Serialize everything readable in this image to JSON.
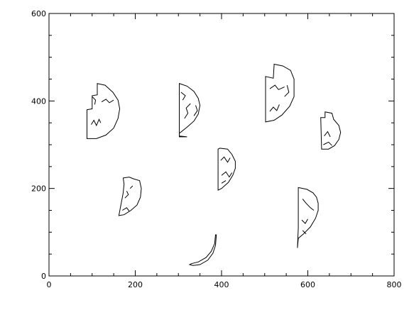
{
  "chart_data": {
    "type": "contour",
    "title": "",
    "xlabel": "",
    "ylabel": "",
    "xlim": [
      0,
      800
    ],
    "ylim": [
      0,
      600
    ],
    "xticks_major": [
      0,
      200,
      400,
      600,
      800
    ],
    "yticks_major": [
      0,
      200,
      400,
      600
    ],
    "xticks_minor_step": 50,
    "yticks_minor_step": 50,
    "grid": false,
    "legend": "none",
    "line_color": "#000000",
    "regions": [
      {
        "name": "region-1",
        "outline": [
          [
            112,
            440
          ],
          [
            130,
            436
          ],
          [
            148,
            420
          ],
          [
            160,
            402
          ],
          [
            164,
            382
          ],
          [
            160,
            360
          ],
          [
            150,
            338
          ],
          [
            132,
            322
          ],
          [
            110,
            314
          ],
          [
            88,
            314
          ],
          [
            88,
            380
          ],
          [
            100,
            382
          ],
          [
            100,
            412
          ],
          [
            112,
            414
          ]
        ],
        "details": [
          [
            [
              98,
              346
            ],
            [
              104,
              356
            ],
            [
              110,
              344
            ],
            [
              116,
              358
            ],
            [
              120,
              350
            ]
          ],
          [
            [
              122,
              398
            ],
            [
              132,
              404
            ],
            [
              140,
              396
            ],
            [
              150,
              402
            ]
          ],
          [
            [
              100,
              410
            ],
            [
              108,
              402
            ],
            [
              106,
              392
            ]
          ]
        ]
      },
      {
        "name": "region-2",
        "outline": [
          [
            302,
            440
          ],
          [
            320,
            434
          ],
          [
            336,
            422
          ],
          [
            346,
            406
          ],
          [
            350,
            390
          ],
          [
            346,
            370
          ],
          [
            336,
            354
          ],
          [
            320,
            340
          ],
          [
            302,
            326
          ],
          [
            302,
            318
          ],
          [
            320,
            318
          ],
          [
            302,
            320
          ]
        ],
        "details": [
          [
            [
              314,
              360
            ],
            [
              322,
              372
            ],
            [
              318,
              384
            ],
            [
              328,
              394
            ]
          ],
          [
            [
              336,
              366
            ],
            [
              344,
              378
            ],
            [
              340,
              390
            ]
          ],
          [
            [
              306,
              420
            ],
            [
              316,
              412
            ],
            [
              310,
              402
            ]
          ]
        ]
      },
      {
        "name": "region-3",
        "outline": [
          [
            502,
            456
          ],
          [
            520,
            452
          ],
          [
            522,
            484
          ],
          [
            542,
            480
          ],
          [
            560,
            470
          ],
          [
            568,
            450
          ],
          [
            568,
            410
          ],
          [
            558,
            388
          ],
          [
            540,
            368
          ],
          [
            522,
            356
          ],
          [
            502,
            352
          ]
        ],
        "details": [
          [
            [
              512,
              428
            ],
            [
              524,
              436
            ],
            [
              532,
              426
            ],
            [
              546,
              432
            ]
          ],
          [
            [
              512,
              376
            ],
            [
              520,
              386
            ],
            [
              528,
              378
            ],
            [
              534,
              392
            ]
          ],
          [
            [
              546,
              410
            ],
            [
              556,
              420
            ],
            [
              552,
              436
            ]
          ]
        ]
      },
      {
        "name": "region-4",
        "outline": [
          [
            640,
            375
          ],
          [
            656,
            372
          ],
          [
            660,
            358
          ],
          [
            672,
            344
          ],
          [
            676,
            328
          ],
          [
            672,
            312
          ],
          [
            662,
            298
          ],
          [
            648,
            290
          ],
          [
            632,
            290
          ],
          [
            630,
            362
          ],
          [
            640,
            362
          ]
        ],
        "details": [
          [
            [
              638,
              320
            ],
            [
              646,
              330
            ],
            [
              652,
              318
            ]
          ],
          [
            [
              636,
              300
            ],
            [
              648,
              306
            ],
            [
              656,
              298
            ]
          ]
        ]
      },
      {
        "name": "region-5",
        "outline": [
          [
            396,
            292
          ],
          [
            414,
            290
          ],
          [
            424,
            278
          ],
          [
            432,
            262
          ],
          [
            432,
            246
          ],
          [
            426,
            230
          ],
          [
            416,
            214
          ],
          [
            400,
            200
          ],
          [
            392,
            196
          ],
          [
            392,
            290
          ]
        ],
        "details": [
          [
            [
              398,
              264
            ],
            [
              406,
              272
            ],
            [
              414,
              260
            ],
            [
              420,
              270
            ]
          ],
          [
            [
              400,
              230
            ],
            [
              410,
              238
            ],
            [
              418,
              226
            ],
            [
              424,
              236
            ]
          ],
          [
            [
              400,
              212
            ],
            [
              410,
              218
            ]
          ]
        ]
      },
      {
        "name": "region-6",
        "outline": [
          [
            172,
            224
          ],
          [
            186,
            226
          ],
          [
            196,
            222
          ],
          [
            210,
            218
          ],
          [
            214,
            200
          ],
          [
            212,
            180
          ],
          [
            204,
            162
          ],
          [
            190,
            150
          ],
          [
            174,
            140
          ],
          [
            162,
            138
          ],
          [
            172,
            190
          ],
          [
            174,
            210
          ]
        ],
        "details": [
          [
            [
              176,
              178
            ],
            [
              184,
              186
            ],
            [
              180,
              194
            ]
          ],
          [
            [
              188,
              200
            ],
            [
              194,
              206
            ]
          ],
          [
            [
              170,
              150
            ],
            [
              180,
              156
            ],
            [
              186,
              148
            ]
          ]
        ]
      },
      {
        "name": "region-7",
        "outline": [
          [
            578,
            202
          ],
          [
            598,
            198
          ],
          [
            612,
            190
          ],
          [
            620,
            180
          ],
          [
            624,
            166
          ],
          [
            624,
            150
          ],
          [
            618,
            132
          ],
          [
            606,
            112
          ],
          [
            590,
            96
          ],
          [
            578,
            86
          ],
          [
            576,
            64
          ],
          [
            578,
            110
          ]
        ],
        "details": [
          [
            [
              588,
              176
            ],
            [
              596,
              166
            ],
            [
              606,
              156
            ],
            [
              614,
              150
            ]
          ],
          [
            [
              586,
              128
            ],
            [
              594,
              120
            ],
            [
              600,
              130
            ]
          ],
          [
            [
              588,
              104
            ],
            [
              596,
              96
            ]
          ]
        ]
      },
      {
        "name": "region-8",
        "outline": [
          [
            386,
            94
          ],
          [
            384,
            74
          ],
          [
            376,
            56
          ],
          [
            364,
            42
          ],
          [
            346,
            32
          ],
          [
            330,
            28
          ],
          [
            326,
            26
          ],
          [
            334,
            24
          ],
          [
            350,
            26
          ],
          [
            368,
            36
          ],
          [
            380,
            52
          ],
          [
            386,
            70
          ],
          [
            388,
            94
          ]
        ],
        "details": []
      }
    ]
  }
}
